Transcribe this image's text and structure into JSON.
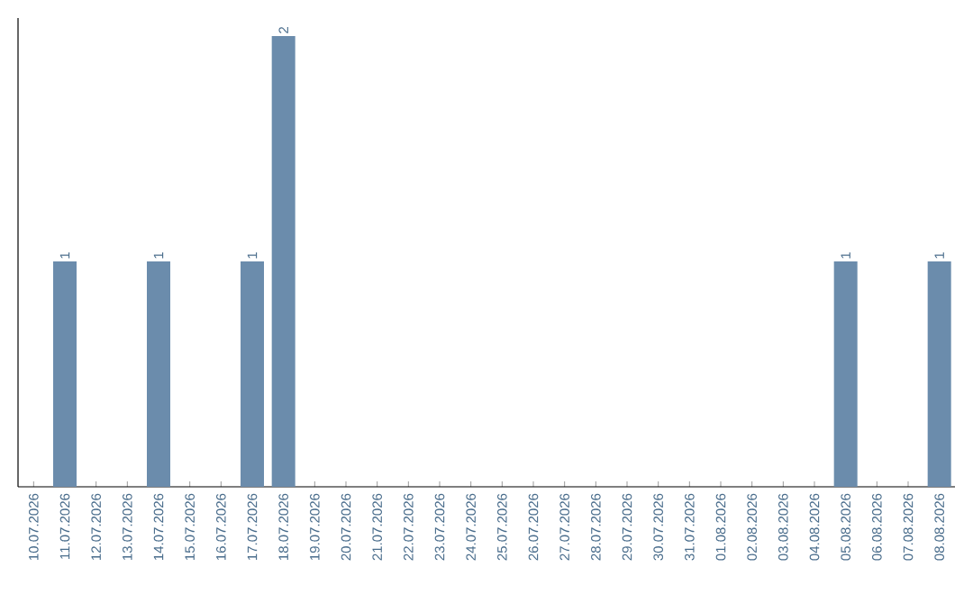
{
  "chart_data": {
    "type": "bar",
    "categories": [
      "10.07.2026",
      "11.07.2026",
      "12.07.2026",
      "13.07.2026",
      "14.07.2026",
      "15.07.2026",
      "16.07.2026",
      "17.07.2026",
      "18.07.2026",
      "19.07.2026",
      "20.07.2026",
      "21.07.2026",
      "22.07.2026",
      "23.07.2026",
      "24.07.2026",
      "25.07.2026",
      "26.07.2026",
      "27.07.2026",
      "28.07.2026",
      "29.07.2026",
      "30.07.2026",
      "31.07.2026",
      "01.08.2026",
      "02.08.2026",
      "03.08.2026",
      "04.08.2026",
      "05.08.2026",
      "06.08.2026",
      "07.08.2026",
      "08.08.2026"
    ],
    "values": [
      0,
      1,
      0,
      0,
      1,
      0,
      0,
      1,
      2,
      0,
      0,
      0,
      0,
      0,
      0,
      0,
      0,
      0,
      0,
      0,
      0,
      0,
      0,
      0,
      0,
      0,
      1,
      0,
      0,
      1
    ],
    "value_labels": [
      null,
      "1",
      null,
      null,
      "1",
      null,
      null,
      "1",
      "2",
      null,
      null,
      null,
      null,
      null,
      null,
      null,
      null,
      null,
      null,
      null,
      null,
      null,
      null,
      null,
      null,
      null,
      "1",
      null,
      null,
      "1"
    ],
    "color": "#6b8cac",
    "tick_labels": "x",
    "grid": false
  }
}
